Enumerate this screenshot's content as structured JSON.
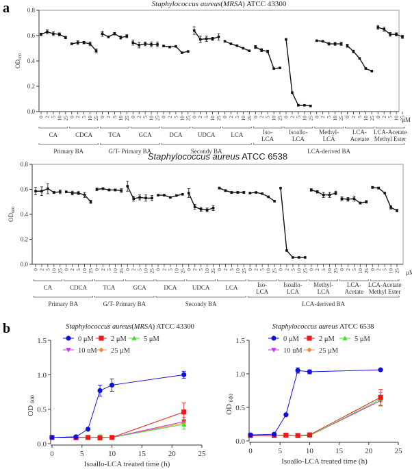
{
  "panels": {
    "a_label": "a",
    "b_label": "b"
  },
  "chart_data": [
    {
      "type": "line",
      "panel": "a-top",
      "title": "Staphylococcus aureus(MRSA) ATCC 43300",
      "title_italic": "Staphylococcus aureus",
      "title_mrsa": "MRSA",
      "title_strain": "ATCC 43300",
      "ylabel": "OD",
      "ylabel_sub": "600",
      "ylim": [
        0,
        0.8
      ],
      "yticks": [
        "0.0",
        "0.2",
        "0.4",
        "0.6",
        "0.8"
      ],
      "unit_label": "μM",
      "concentrations": [
        "0",
        "2",
        "5",
        "10",
        "25"
      ],
      "compounds": [
        {
          "label": [
            "CA"
          ],
          "values": [
            0.61,
            0.63,
            0.615,
            0.61,
            0.585
          ],
          "err": [
            0.01,
            0.015,
            0.015,
            0.012,
            0.01
          ]
        },
        {
          "label": [
            "CDCA"
          ],
          "values": [
            0.535,
            0.545,
            0.545,
            0.535,
            0.48
          ],
          "err": [
            0.005,
            0.015,
            0.01,
            0.015,
            0.015
          ]
        },
        {
          "label": [
            "TCA"
          ],
          "values": [
            0.615,
            0.59,
            0.615,
            0.585,
            0.595
          ],
          "err": [
            0.02,
            0.008,
            0.01,
            0.012,
            0.012
          ]
        },
        {
          "label": [
            "GCA"
          ],
          "values": [
            0.545,
            0.525,
            0.535,
            0.53,
            0.53
          ],
          "err": [
            0.02,
            0.022,
            0.015,
            0.02,
            0.02
          ]
        },
        {
          "label": [
            "DCA"
          ],
          "values": [
            0.518,
            0.51,
            0.515,
            0.465,
            0.475
          ],
          "err": [
            0.005,
            0.005,
            0.005,
            0.005,
            0.005
          ]
        },
        {
          "label": [
            "UDCA"
          ],
          "values": [
            0.64,
            0.57,
            0.575,
            0.575,
            0.59
          ],
          "err": [
            0.03,
            0.025,
            0.02,
            0.012,
            0.025
          ]
        },
        {
          "label": [
            "LCA"
          ],
          "values": [
            0.555,
            0.535,
            0.52,
            0.5,
            0.48
          ],
          "err": [
            0.005,
            0.005,
            0.005,
            0.005,
            0.005
          ]
        },
        {
          "label": [
            "Iso-",
            "LCA"
          ],
          "values": [
            0.51,
            0.485,
            0.475,
            0.34,
            0.345
          ],
          "err": [
            0.012,
            0.012,
            0.01,
            0.005,
            0.005
          ]
        },
        {
          "label": [
            "Isoallo-",
            "LCA"
          ],
          "values": [
            0.57,
            0.15,
            0.05,
            0.05,
            0.045
          ],
          "err": [
            0.005,
            0.005,
            0.005,
            0.005,
            0.005
          ]
        },
        {
          "label": [
            "Methyl-",
            "LCA"
          ],
          "values": [
            0.56,
            0.555,
            0.535,
            0.535,
            0.535
          ],
          "err": [
            0.005,
            0.005,
            0.01,
            0.012,
            0.012
          ]
        },
        {
          "label": [
            "LCA-",
            "Acetate"
          ],
          "values": [
            0.52,
            0.475,
            0.42,
            0.34,
            0.32
          ],
          "err": [
            0.012,
            0.01,
            0.005,
            0.005,
            0.005
          ]
        },
        {
          "label": [
            "LCA-Acetate",
            "Methyl Ester"
          ],
          "values": [
            0.665,
            0.65,
            0.61,
            0.61,
            0.59
          ],
          "err": [
            0.015,
            0.015,
            0.015,
            0.012,
            0.012
          ]
        }
      ],
      "categories": [
        {
          "label": "Primary BA",
          "from": 0,
          "to": 1
        },
        {
          "label": "G/T- Primary BA",
          "from": 2,
          "to": 3
        },
        {
          "label": "Secondy  BA",
          "from": 4,
          "to": 6
        },
        {
          "label": "LCA-derived BA",
          "from": 7,
          "to": 11
        }
      ]
    },
    {
      "type": "line",
      "panel": "a-bottom",
      "title": "Staphylococcus aureus ATCC 6538",
      "title_italic": "Staphylococcus aureus",
      "title_strain": "ATCC 6538",
      "ylabel": "OD",
      "ylabel_sub": "600",
      "ylim": [
        0,
        0.8
      ],
      "yticks": [
        "0.0",
        "0.2",
        "0.4",
        "0.6",
        "0.8"
      ],
      "unit_label": "μM",
      "concentrations": [
        "0",
        "2",
        "5",
        "10",
        "25"
      ],
      "compounds": [
        {
          "label": [
            "CA"
          ],
          "values": [
            0.585,
            0.585,
            0.605,
            0.575,
            0.58
          ],
          "err": [
            0.03,
            0.035,
            0.04,
            0.008,
            0.015
          ]
        },
        {
          "label": [
            "CDCA"
          ],
          "values": [
            0.58,
            0.57,
            0.57,
            0.555,
            0.5
          ],
          "err": [
            0.005,
            0.015,
            0.012,
            0.02,
            0.012
          ]
        },
        {
          "label": [
            "TCA"
          ],
          "values": [
            0.6,
            0.605,
            0.595,
            0.595,
            0.59
          ],
          "err": [
            0.01,
            0.008,
            0.008,
            0.008,
            0.015
          ]
        },
        {
          "label": [
            "GCA"
          ],
          "values": [
            0.625,
            0.525,
            0.535,
            0.53,
            0.53
          ],
          "err": [
            0.04,
            0.02,
            0.02,
            0.025,
            0.02
          ]
        },
        {
          "label": [
            "DCA"
          ],
          "values": [
            0.553,
            0.553,
            0.535,
            0.55,
            0.56
          ],
          "err": [
            0.005,
            0.005,
            0.005,
            0.005,
            0.005
          ]
        },
        {
          "label": [
            "UDCA"
          ],
          "values": [
            0.57,
            0.46,
            0.44,
            0.435,
            0.45
          ],
          "err": [
            0.035,
            0.02,
            0.015,
            0.015,
            0.02
          ]
        },
        {
          "label": [
            "LCA"
          ],
          "values": [
            0.61,
            0.59,
            0.575,
            0.575,
            0.575
          ],
          "err": [
            0.008,
            0.008,
            0.008,
            0.008,
            0.008
          ]
        },
        {
          "label": [
            "Iso-",
            "LCA"
          ],
          "values": [
            0.57,
            0.575,
            0.565,
            0.54,
            0.505
          ],
          "err": [
            0.005,
            0.005,
            0.005,
            0.005,
            0.005
          ]
        },
        {
          "label": [
            "Isoallo-",
            "LCA"
          ],
          "values": [
            0.61,
            0.11,
            0.055,
            0.055,
            0.055
          ],
          "err": [
            0.005,
            0.005,
            0.005,
            0.005,
            0.005
          ]
        },
        {
          "label": [
            "Methyl-",
            "LCA"
          ],
          "values": [
            0.595,
            0.58,
            0.555,
            0.555,
            0.57
          ],
          "err": [
            0.01,
            0.01,
            0.02,
            0.02,
            0.015
          ]
        },
        {
          "label": [
            "LCA-",
            "Acetate"
          ],
          "values": [
            0.525,
            0.52,
            0.525,
            0.49,
            0.5
          ],
          "err": [
            0.015,
            0.015,
            0.02,
            0.008,
            0.01
          ]
        },
        {
          "label": [
            "LCA-Acetate",
            "Methyl Ester"
          ],
          "values": [
            0.615,
            0.61,
            0.57,
            0.455,
            0.43
          ],
          "err": [
            0.008,
            0.008,
            0.005,
            0.015,
            0.01
          ]
        }
      ],
      "categories": [
        {
          "label": "Primary BA",
          "from": 0,
          "to": 1
        },
        {
          "label": "G/T- Primary BA",
          "from": 2,
          "to": 3
        },
        {
          "label": "Secondy  BA",
          "from": 4,
          "to": 6
        },
        {
          "label": "LCA-derived BA",
          "from": 7,
          "to": 11
        }
      ]
    },
    {
      "type": "line",
      "panel": "b-left",
      "title_italic": "Staphylococcus aureus",
      "title_mrsa": "MRSA",
      "title_strain": "ATCC 43300",
      "xlabel": "Isoallo-LCA treated time (h)",
      "ylabel": "OD",
      "ylabel_sub": "600",
      "xlim": [
        0,
        25
      ],
      "ylim": [
        0,
        1.5
      ],
      "xticks": [
        "0",
        "5",
        "10",
        "15",
        "20",
        "25"
      ],
      "yticks": [
        "0.0",
        "0.5",
        "1.0",
        "1.5"
      ],
      "x": [
        0,
        4,
        6,
        8,
        10,
        22
      ],
      "series": [
        {
          "name": "0 μM",
          "color": "#1010e0",
          "marker": "circle",
          "values": [
            0.09,
            0.1,
            0.21,
            0.77,
            0.85,
            1.0
          ],
          "err": [
            0.01,
            0.01,
            0.01,
            0.08,
            0.09,
            0.05
          ]
        },
        {
          "name": "2 μM",
          "color": "#f01818",
          "marker": "square",
          "values": [
            0.09,
            0.085,
            0.09,
            0.085,
            0.09,
            0.46
          ],
          "err": [
            0.01,
            0.01,
            0.01,
            0.01,
            0.01,
            0.13
          ]
        },
        {
          "name": "5 μM",
          "color": "#44dd33",
          "marker": "triangle-up",
          "values": [
            0.09,
            0.085,
            0.09,
            0.09,
            0.09,
            0.28
          ],
          "err": [
            0.01,
            0.01,
            0.01,
            0.04,
            0.01,
            0.07
          ]
        },
        {
          "name": "10 uM",
          "color": "#cc33ee",
          "marker": "triangle-down",
          "values": [
            0.09,
            0.085,
            0.09,
            0.09,
            0.09,
            0.32
          ],
          "err": [
            0.01,
            0.01,
            0.01,
            0.01,
            0.01,
            0.06
          ]
        },
        {
          "name": "25 μM",
          "color": "#f08a30",
          "marker": "diamond",
          "values": [
            0.09,
            0.085,
            0.09,
            0.09,
            0.09,
            0.3
          ],
          "err": [
            0.01,
            0.01,
            0.01,
            0.01,
            0.01,
            0.05
          ]
        }
      ],
      "legend_position": "top-left"
    },
    {
      "type": "line",
      "panel": "b-right",
      "title_italic": "Staphylococcus aureus",
      "title_strain": "ATCC 6538",
      "xlabel": "Isoallo-LCA treated time (h)",
      "ylabel": "OD",
      "ylabel_sub": "600",
      "xlim": [
        0,
        25
      ],
      "ylim": [
        0,
        1.5
      ],
      "xticks": [
        "0",
        "5",
        "10",
        "15",
        "20",
        "25"
      ],
      "yticks": [
        "0.0",
        "0.5",
        "1.0",
        "1.5"
      ],
      "x": [
        0,
        4,
        6,
        8,
        10,
        22
      ],
      "series": [
        {
          "name": "0 μM",
          "color": "#1010e0",
          "marker": "circle",
          "values": [
            0.09,
            0.1,
            0.39,
            1.05,
            1.03,
            1.06
          ],
          "err": [
            0.01,
            0.01,
            0.01,
            0.04,
            0.03,
            0.01
          ]
        },
        {
          "name": "2 μM",
          "color": "#f01818",
          "marker": "square",
          "values": [
            0.08,
            0.08,
            0.085,
            0.08,
            0.09,
            0.65
          ],
          "err": [
            0.01,
            0.01,
            0.01,
            0.01,
            0.01,
            0.12
          ]
        },
        {
          "name": "5 μM",
          "color": "#44dd33",
          "marker": "triangle-up",
          "values": [
            0.08,
            0.08,
            0.085,
            0.08,
            0.08,
            0.62
          ],
          "err": [
            0.01,
            0.01,
            0.01,
            0.01,
            0.01,
            0.1
          ]
        },
        {
          "name": "10 uM",
          "color": "#cc33ee",
          "marker": "triangle-down",
          "values": [
            0.08,
            0.08,
            0.085,
            0.08,
            0.08,
            0.6
          ],
          "err": [
            0.01,
            0.01,
            0.01,
            0.01,
            0.01,
            0.08
          ]
        },
        {
          "name": "25 μM",
          "color": "#f08a30",
          "marker": "diamond",
          "values": [
            0.08,
            0.08,
            0.085,
            0.08,
            0.08,
            0.6
          ],
          "err": [
            0.01,
            0.01,
            0.01,
            0.01,
            0.01,
            0.07
          ]
        }
      ],
      "legend_position": "top-left"
    }
  ]
}
